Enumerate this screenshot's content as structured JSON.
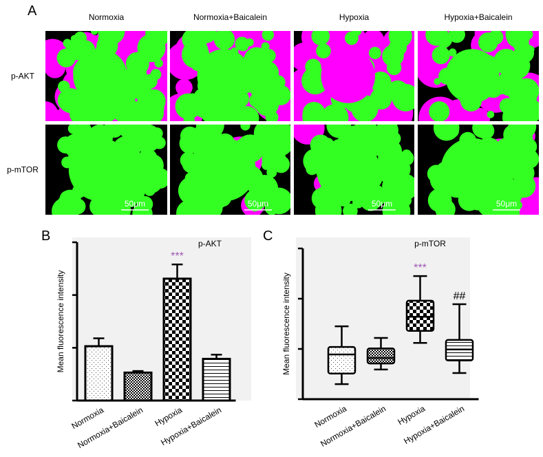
{
  "panel_a": {
    "label": "A",
    "columns": [
      "Normoxia",
      "Normoxia+Baicalein",
      "Hypoxia",
      "Hypoxia+Baicalein"
    ],
    "rows": [
      "p-AKT",
      "p-mTOR"
    ],
    "scale_bar": "50μm"
  },
  "chart_data": [
    {
      "type": "bar",
      "panel": "B",
      "title": "p-AKT",
      "ylabel": "Mean fluorescence intensity",
      "categories": [
        "Normoxia",
        "Normoxia+Baicalein",
        "Hypoxia",
        "Hypoxia+Baicalein"
      ],
      "values": [
        1.03,
        0.53,
        2.31,
        0.79
      ],
      "errors": [
        0.15,
        0.03,
        0.27,
        0.08
      ],
      "ylim": [
        0,
        3
      ],
      "yticks": [
        0,
        1,
        2,
        3
      ],
      "annotations": [
        {
          "text": "***",
          "category": "Hypoxia",
          "color": "#a05ab4"
        }
      ]
    },
    {
      "type": "box",
      "panel": "C",
      "title": "p-mTOR",
      "ylabel": "Mean fluorescence intensity",
      "categories": [
        "Normoxia",
        "Normoxia+Baicalein",
        "Hypoxia",
        "Hypoxia+Baicalein"
      ],
      "boxes": [
        {
          "min": 0.3,
          "q1": 0.51,
          "median": 0.89,
          "q3": 1.04,
          "max": 1.45
        },
        {
          "min": 0.59,
          "q1": 0.71,
          "median": 0.82,
          "q3": 1.01,
          "max": 1.22
        },
        {
          "min": 1.12,
          "q1": 1.36,
          "median": 1.64,
          "q3": 1.96,
          "max": 2.45
        },
        {
          "min": 0.52,
          "q1": 0.77,
          "median": 0.99,
          "q3": 1.18,
          "max": 1.89
        }
      ],
      "ylim": [
        0,
        3
      ],
      "yticks": [
        0,
        1,
        2,
        3
      ],
      "annotations": [
        {
          "text": "***",
          "category": "Hypoxia",
          "color": "#a05ab4"
        },
        {
          "text": "##",
          "category": "Hypoxia+Baicalein",
          "color": "#000000"
        }
      ]
    }
  ]
}
